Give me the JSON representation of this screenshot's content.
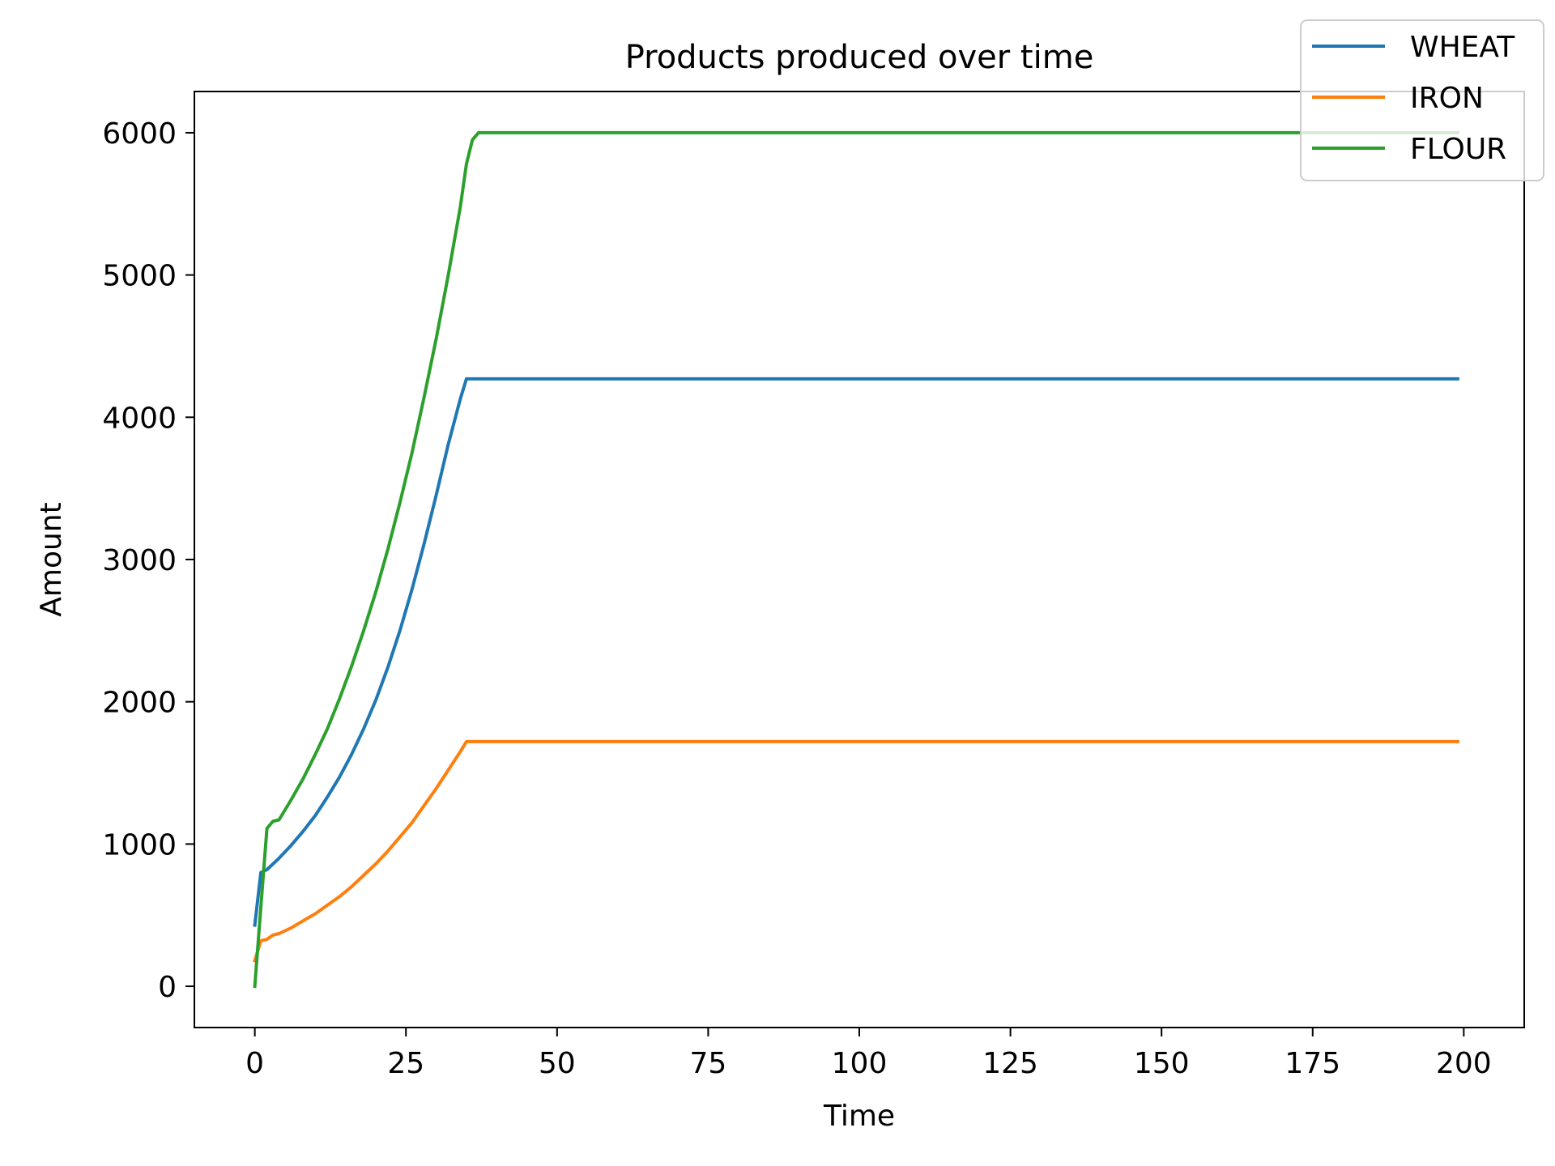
{
  "chart_data": {
    "type": "line",
    "title": "Products produced over time",
    "xlabel": "Time",
    "ylabel": "Amount",
    "xlim": [
      -10,
      210
    ],
    "ylim": [
      -290,
      6290
    ],
    "xticks": [
      0,
      25,
      50,
      75,
      100,
      125,
      150,
      175,
      200
    ],
    "yticks": [
      0,
      1000,
      2000,
      3000,
      4000,
      5000,
      6000
    ],
    "xtick_labels": [
      "0",
      "25",
      "50",
      "75",
      "100",
      "125",
      "150",
      "175",
      "200"
    ],
    "ytick_labels": [
      "0",
      "1000",
      "2000",
      "3000",
      "4000",
      "5000",
      "6000"
    ],
    "grid": false,
    "legend_position": "top-right",
    "series": [
      {
        "name": "WHEAT",
        "color": "#1f77b4",
        "x": [
          0,
          1,
          2,
          4,
          6,
          8,
          10,
          12,
          14,
          16,
          18,
          20,
          22,
          24,
          26,
          28,
          30,
          32,
          34,
          35,
          199
        ],
        "y": [
          430,
          800,
          820,
          900,
          990,
          1090,
          1200,
          1330,
          1470,
          1630,
          1810,
          2010,
          2240,
          2500,
          2790,
          3110,
          3450,
          3810,
          4130,
          4270,
          4270
        ]
      },
      {
        "name": "IRON",
        "color": "#ff7f0e",
        "x": [
          0,
          1,
          2,
          3,
          4,
          6,
          8,
          10,
          12,
          14,
          16,
          18,
          20,
          22,
          24,
          26,
          28,
          30,
          32,
          34,
          35,
          199
        ],
        "y": [
          180,
          320,
          330,
          360,
          370,
          410,
          460,
          510,
          570,
          630,
          700,
          780,
          860,
          950,
          1050,
          1150,
          1270,
          1390,
          1520,
          1650,
          1720,
          1720
        ]
      },
      {
        "name": "FLOUR",
        "color": "#2ca02c",
        "x": [
          0,
          1,
          2,
          3,
          4,
          6,
          8,
          10,
          12,
          14,
          16,
          18,
          20,
          22,
          24,
          26,
          28,
          30,
          32,
          34,
          35,
          36,
          37,
          38,
          199
        ],
        "y": [
          0,
          560,
          1110,
          1160,
          1170,
          1310,
          1460,
          1630,
          1810,
          2020,
          2250,
          2500,
          2770,
          3070,
          3400,
          3750,
          4140,
          4550,
          5000,
          5480,
          5780,
          5950,
          6000,
          6000,
          6000
        ]
      }
    ]
  }
}
